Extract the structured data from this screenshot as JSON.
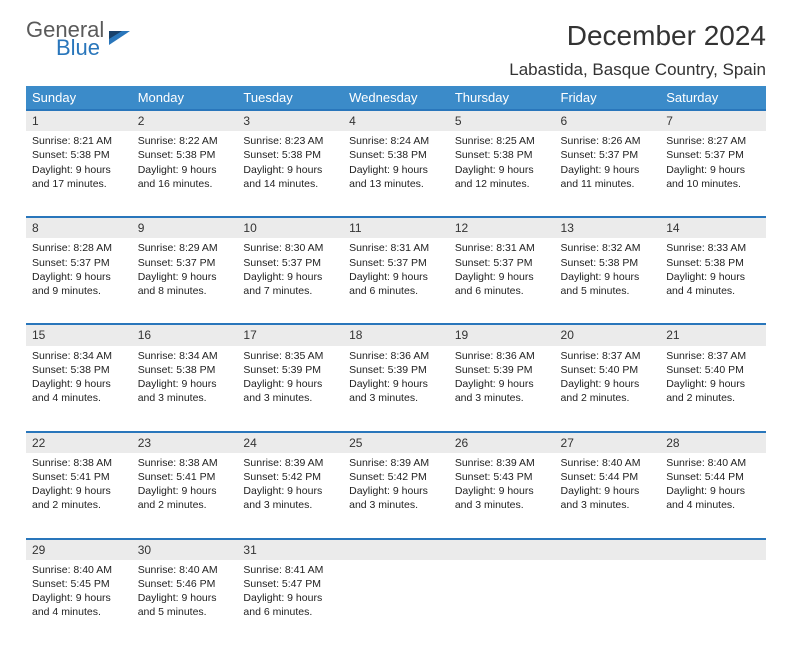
{
  "brand": {
    "part1": "General",
    "part2": "Blue"
  },
  "title": "December 2024",
  "location": "Labastida, Basque Country, Spain",
  "colors": {
    "header_bg": "#3b8bc9",
    "header_text": "#ffffff",
    "row_border": "#2976bb",
    "daynum_bg": "#ebebeb",
    "brand_gray": "#5a5a5a",
    "brand_blue": "#2976bb"
  },
  "weekdays": [
    "Sunday",
    "Monday",
    "Tuesday",
    "Wednesday",
    "Thursday",
    "Friday",
    "Saturday"
  ],
  "weeks": [
    [
      {
        "n": "1",
        "sr": "8:21 AM",
        "ss": "5:38 PM",
        "dl": "9 hours and 17 minutes."
      },
      {
        "n": "2",
        "sr": "8:22 AM",
        "ss": "5:38 PM",
        "dl": "9 hours and 16 minutes."
      },
      {
        "n": "3",
        "sr": "8:23 AM",
        "ss": "5:38 PM",
        "dl": "9 hours and 14 minutes."
      },
      {
        "n": "4",
        "sr": "8:24 AM",
        "ss": "5:38 PM",
        "dl": "9 hours and 13 minutes."
      },
      {
        "n": "5",
        "sr": "8:25 AM",
        "ss": "5:38 PM",
        "dl": "9 hours and 12 minutes."
      },
      {
        "n": "6",
        "sr": "8:26 AM",
        "ss": "5:37 PM",
        "dl": "9 hours and 11 minutes."
      },
      {
        "n": "7",
        "sr": "8:27 AM",
        "ss": "5:37 PM",
        "dl": "9 hours and 10 minutes."
      }
    ],
    [
      {
        "n": "8",
        "sr": "8:28 AM",
        "ss": "5:37 PM",
        "dl": "9 hours and 9 minutes."
      },
      {
        "n": "9",
        "sr": "8:29 AM",
        "ss": "5:37 PM",
        "dl": "9 hours and 8 minutes."
      },
      {
        "n": "10",
        "sr": "8:30 AM",
        "ss": "5:37 PM",
        "dl": "9 hours and 7 minutes."
      },
      {
        "n": "11",
        "sr": "8:31 AM",
        "ss": "5:37 PM",
        "dl": "9 hours and 6 minutes."
      },
      {
        "n": "12",
        "sr": "8:31 AM",
        "ss": "5:37 PM",
        "dl": "9 hours and 6 minutes."
      },
      {
        "n": "13",
        "sr": "8:32 AM",
        "ss": "5:38 PM",
        "dl": "9 hours and 5 minutes."
      },
      {
        "n": "14",
        "sr": "8:33 AM",
        "ss": "5:38 PM",
        "dl": "9 hours and 4 minutes."
      }
    ],
    [
      {
        "n": "15",
        "sr": "8:34 AM",
        "ss": "5:38 PM",
        "dl": "9 hours and 4 minutes."
      },
      {
        "n": "16",
        "sr": "8:34 AM",
        "ss": "5:38 PM",
        "dl": "9 hours and 3 minutes."
      },
      {
        "n": "17",
        "sr": "8:35 AM",
        "ss": "5:39 PM",
        "dl": "9 hours and 3 minutes."
      },
      {
        "n": "18",
        "sr": "8:36 AM",
        "ss": "5:39 PM",
        "dl": "9 hours and 3 minutes."
      },
      {
        "n": "19",
        "sr": "8:36 AM",
        "ss": "5:39 PM",
        "dl": "9 hours and 3 minutes."
      },
      {
        "n": "20",
        "sr": "8:37 AM",
        "ss": "5:40 PM",
        "dl": "9 hours and 2 minutes."
      },
      {
        "n": "21",
        "sr": "8:37 AM",
        "ss": "5:40 PM",
        "dl": "9 hours and 2 minutes."
      }
    ],
    [
      {
        "n": "22",
        "sr": "8:38 AM",
        "ss": "5:41 PM",
        "dl": "9 hours and 2 minutes."
      },
      {
        "n": "23",
        "sr": "8:38 AM",
        "ss": "5:41 PM",
        "dl": "9 hours and 2 minutes."
      },
      {
        "n": "24",
        "sr": "8:39 AM",
        "ss": "5:42 PM",
        "dl": "9 hours and 3 minutes."
      },
      {
        "n": "25",
        "sr": "8:39 AM",
        "ss": "5:42 PM",
        "dl": "9 hours and 3 minutes."
      },
      {
        "n": "26",
        "sr": "8:39 AM",
        "ss": "5:43 PM",
        "dl": "9 hours and 3 minutes."
      },
      {
        "n": "27",
        "sr": "8:40 AM",
        "ss": "5:44 PM",
        "dl": "9 hours and 3 minutes."
      },
      {
        "n": "28",
        "sr": "8:40 AM",
        "ss": "5:44 PM",
        "dl": "9 hours and 4 minutes."
      }
    ],
    [
      {
        "n": "29",
        "sr": "8:40 AM",
        "ss": "5:45 PM",
        "dl": "9 hours and 4 minutes."
      },
      {
        "n": "30",
        "sr": "8:40 AM",
        "ss": "5:46 PM",
        "dl": "9 hours and 5 minutes."
      },
      {
        "n": "31",
        "sr": "8:41 AM",
        "ss": "5:47 PM",
        "dl": "9 hours and 6 minutes."
      },
      null,
      null,
      null,
      null
    ]
  ],
  "labels": {
    "sunrise": "Sunrise:",
    "sunset": "Sunset:",
    "daylight": "Daylight:"
  }
}
